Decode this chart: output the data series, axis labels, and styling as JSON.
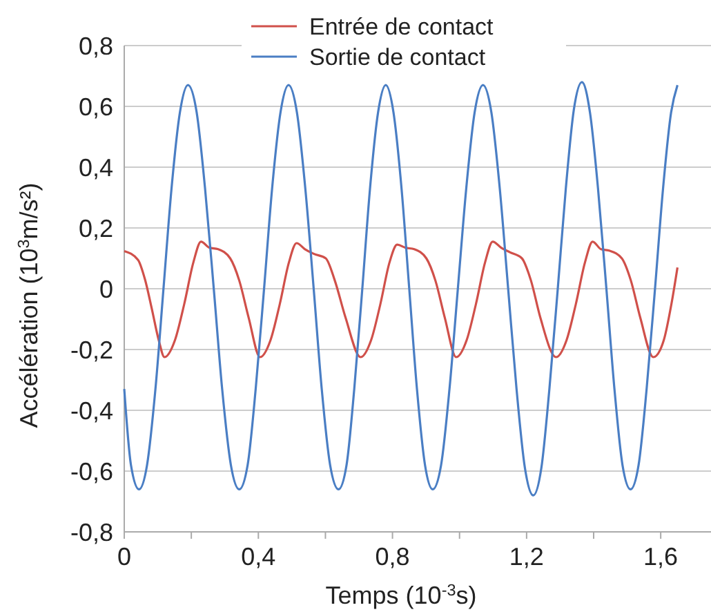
{
  "chart_data": {
    "type": "line",
    "xlabel": "Temps (10$^{-3}$s)",
    "ylabel": "Accélération (10$^{3}$m/s²)",
    "xlim": [
      0,
      1.75
    ],
    "ylim": [
      -0.8,
      0.8
    ],
    "xticks": [
      0,
      {
        "value": 0.2,
        "label": null
      },
      {
        "value": 0.4,
        "label": "0,4"
      },
      {
        "value": 0.6,
        "label": null
      },
      {
        "value": 0.8,
        "label": "0,8"
      },
      {
        "value": 1.0,
        "label": null
      },
      {
        "value": 1.2,
        "label": "1,2"
      },
      {
        "value": 1.4,
        "label": null
      },
      {
        "value": 1.6,
        "label": "1,6"
      }
    ],
    "yticks": [
      {
        "value": -0.8,
        "label": "-0,8"
      },
      {
        "value": -0.6,
        "label": "-0,6"
      },
      {
        "value": -0.4,
        "label": "-0,4"
      },
      {
        "value": -0.2,
        "label": "-0,2"
      },
      0,
      {
        "value": 0.2,
        "label": "0,2"
      },
      {
        "value": 0.4,
        "label": "0,4"
      },
      {
        "value": 0.6,
        "label": "0,6"
      },
      {
        "value": 0.8,
        "label": "0,8"
      }
    ],
    "grid": "y",
    "legend": "top",
    "line_style": "solid",
    "marker": "none",
    "series": [
      {
        "name": "Entrée de contact",
        "color": "#d0504a",
        "x": [
          0,
          0.041,
          0.062,
          0.082,
          0.103,
          0.12,
          0.151,
          0.179,
          0.206,
          0.229,
          0.254,
          0.28,
          0.316,
          0.343,
          0.371,
          0.405,
          0.436,
          0.464,
          0.491,
          0.514,
          0.539,
          0.565,
          0.601,
          0.628,
          0.66,
          0.705,
          0.736,
          0.764,
          0.791,
          0.814,
          0.839,
          0.865,
          0.901,
          0.928,
          0.956,
          0.99,
          1.021,
          1.049,
          1.076,
          1.099,
          1.124,
          1.15,
          1.186,
          1.213,
          1.241,
          1.288,
          1.319,
          1.347,
          1.374,
          1.397,
          1.422,
          1.448,
          1.484,
          1.511,
          1.539,
          1.578,
          1.609,
          1.632,
          1.65
        ],
        "values": [
          0.124,
          0.095,
          0.03,
          -0.065,
          -0.17,
          -0.225,
          -0.17,
          -0.05,
          0.086,
          0.155,
          0.135,
          0.13,
          0.1,
          0.027,
          -0.095,
          -0.225,
          -0.17,
          -0.05,
          0.086,
          0.15,
          0.13,
          0.115,
          0.1,
          0.027,
          -0.095,
          -0.225,
          -0.17,
          -0.05,
          0.086,
          0.145,
          0.135,
          0.13,
          0.1,
          0.027,
          -0.095,
          -0.225,
          -0.17,
          -0.05,
          0.086,
          0.155,
          0.135,
          0.12,
          0.1,
          0.027,
          -0.095,
          -0.225,
          -0.17,
          -0.05,
          0.086,
          0.155,
          0.13,
          0.125,
          0.1,
          0.027,
          -0.095,
          -0.225,
          -0.17,
          -0.05,
          0.07
        ]
      },
      {
        "name": "Sortie de contact",
        "color": "#4a7ec4",
        "x": [
          0,
          0.02,
          0.044,
          0.068,
          0.093,
          0.117,
          0.141,
          0.166,
          0.19,
          0.216,
          0.241,
          0.267,
          0.292,
          0.318,
          0.343,
          0.368,
          0.392,
          0.417,
          0.441,
          0.466,
          0.49,
          0.515,
          0.54,
          0.565,
          0.589,
          0.614,
          0.639,
          0.663,
          0.686,
          0.71,
          0.733,
          0.757,
          0.78,
          0.803,
          0.827,
          0.85,
          0.873,
          0.897,
          0.92,
          0.945,
          0.97,
          0.995,
          1.02,
          1.045,
          1.07,
          1.095,
          1.12,
          1.145,
          1.17,
          1.195,
          1.22,
          1.244,
          1.268,
          1.293,
          1.317,
          1.341,
          1.365,
          1.389,
          1.413,
          1.438,
          1.462,
          1.486,
          1.51,
          1.534,
          1.558,
          1.583,
          1.607,
          1.631,
          1.65
        ],
        "values": [
          -0.33,
          -0.58,
          -0.66,
          -0.58,
          -0.33,
          0,
          0.33,
          0.58,
          0.67,
          0.58,
          0.33,
          0,
          -0.33,
          -0.58,
          -0.66,
          -0.58,
          -0.33,
          0,
          0.33,
          0.58,
          0.67,
          0.58,
          0.33,
          0,
          -0.33,
          -0.58,
          -0.66,
          -0.58,
          -0.33,
          0,
          0.33,
          0.58,
          0.67,
          0.58,
          0.33,
          0,
          -0.33,
          -0.58,
          -0.66,
          -0.58,
          -0.33,
          0,
          0.33,
          0.58,
          0.67,
          0.58,
          0.33,
          0,
          -0.33,
          -0.59,
          -0.68,
          -0.59,
          -0.33,
          0,
          0.33,
          0.59,
          0.68,
          0.58,
          0.33,
          0,
          -0.33,
          -0.58,
          -0.66,
          -0.58,
          -0.33,
          0,
          0.33,
          0.58,
          0.67
        ]
      }
    ]
  }
}
